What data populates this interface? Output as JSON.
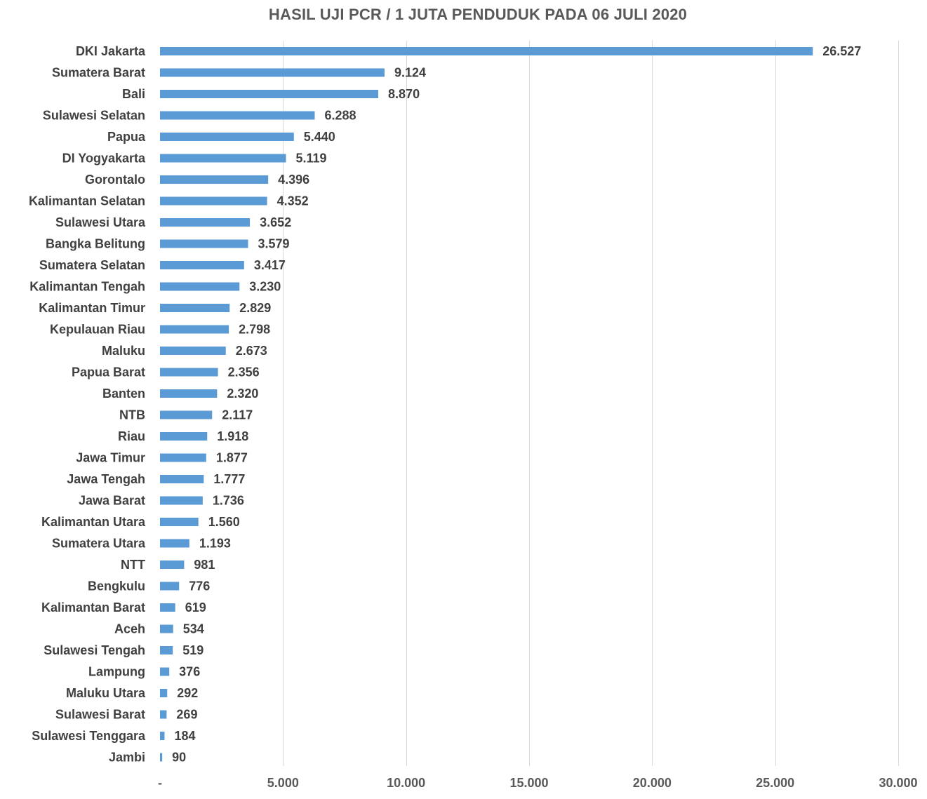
{
  "chart_data": {
    "type": "bar",
    "orientation": "horizontal",
    "title": "HASIL UJI PCR / 1 JUTA PENDUDUK PADA 06 JULI 2020",
    "xlabel": "",
    "ylabel": "",
    "xlim": [
      0,
      30000
    ],
    "grid": true,
    "legend": "none",
    "bar_color": "#5b9bd5",
    "categories": [
      "DKI Jakarta",
      "Sumatera Barat",
      "Bali",
      "Sulawesi Selatan",
      "Papua",
      "DI Yogyakarta",
      "Gorontalo",
      "Kalimantan Selatan",
      "Sulawesi Utara",
      "Bangka Belitung",
      "Sumatera Selatan",
      "Kalimantan Tengah",
      "Kalimantan Timur",
      "Kepulauan Riau",
      "Maluku",
      "Papua Barat",
      "Banten",
      "NTB",
      "Riau",
      "Jawa Timur",
      "Jawa Tengah",
      "Jawa Barat",
      "Kalimantan Utara",
      "Sumatera Utara",
      "NTT",
      "Bengkulu",
      "Kalimantan Barat",
      "Aceh",
      "Sulawesi Tengah",
      "Lampung",
      "Maluku Utara",
      "Sulawesi Barat",
      "Sulawesi Tenggara",
      "Jambi"
    ],
    "values": [
      26527,
      9124,
      8870,
      6288,
      5440,
      5119,
      4396,
      4352,
      3652,
      3579,
      3417,
      3230,
      2829,
      2798,
      2673,
      2356,
      2320,
      2117,
      1918,
      1877,
      1777,
      1736,
      1560,
      1193,
      981,
      776,
      619,
      534,
      519,
      376,
      292,
      269,
      184,
      90
    ],
    "value_labels": [
      "26.527",
      "9.124",
      "8.870",
      "6.288",
      "5.440",
      "5.119",
      "4.396",
      "4.352",
      "3.652",
      "3.579",
      "3.417",
      "3.230",
      "2.829",
      "2.798",
      "2.673",
      "2.356",
      "2.320",
      "2.117",
      "1.918",
      "1.877",
      "1.777",
      "1.736",
      "1.560",
      "1.193",
      "981",
      "776",
      "619",
      "534",
      "519",
      "376",
      "292",
      "269",
      "184",
      "90"
    ],
    "x_ticks": [
      0,
      5000,
      10000,
      15000,
      20000,
      25000,
      30000
    ],
    "x_tick_labels": [
      "-",
      "5.000",
      "10.000",
      "15.000",
      "20.000",
      "25.000",
      "30.000"
    ]
  }
}
